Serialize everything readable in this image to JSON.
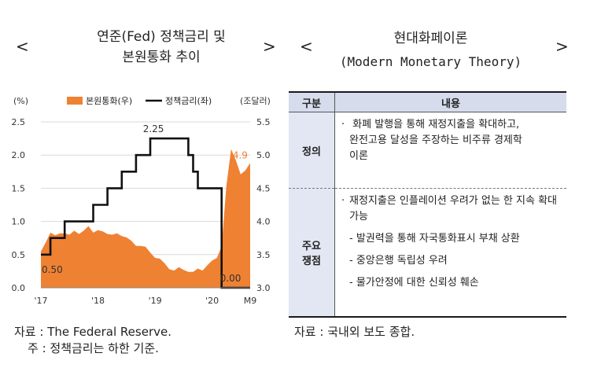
{
  "left_panel": {
    "bracket_left": "<",
    "bracket_right": ">",
    "title_line1": "연준(Fed) 정책금리 및",
    "title_line2": "본원통화 추이",
    "source": "자료 : The Federal Reserve.",
    "note": "주 : 정책금리는 하한 기준."
  },
  "right_panel": {
    "bracket_left": "<",
    "bracket_right": ">",
    "title_line1": "현대화페이론",
    "title_line2": "(Modern Monetary Theory)",
    "table": {
      "header": [
        "구분",
        "내용"
      ],
      "rows": [
        {
          "label": "정의",
          "lines": [
            "화폐 발행을 통해 재정지출을 확대하고,",
            "완전고용 달성을 주장하는 비주류 경제학",
            "이론"
          ]
        },
        {
          "label_line1": "주요",
          "label_line2": "쟁점",
          "main": "재정지출은 인플레이션 우려가 없는 한 지속 확대 가능",
          "subs": [
            "발권력을 통해 자국통화표시 부채 상환",
            "중앙은행 독립성 우려",
            "물가안정에 대한 신뢰성 훼손"
          ]
        }
      ]
    },
    "source": "자료 : 국내외 보도 종합."
  },
  "chart_data": {
    "type": "line+area",
    "left_unit": "(%)",
    "right_unit": "(조달러)",
    "legend": [
      {
        "name": "본원통화(우)",
        "color": "#ef8132"
      },
      {
        "name": "정책금리(좌)",
        "color": "#111111"
      }
    ],
    "x_ticks": [
      "'17",
      "'18",
      "'19",
      "'20",
      "M9"
    ],
    "left_axis": {
      "ylim": [
        0.0,
        2.5
      ],
      "ticks": [
        "0.0",
        "0.5",
        "1.0",
        "1.5",
        "2.0",
        "2.5"
      ]
    },
    "right_axis": {
      "ylim": [
        3.0,
        5.5
      ],
      "ticks": [
        "3.0",
        "3.5",
        "4.0",
        "4.5",
        "5.0",
        "5.5"
      ]
    },
    "annotations": [
      "2.25",
      "0.50",
      "0.00",
      "4.9"
    ],
    "series": [
      {
        "name": "정책금리(좌)",
        "axis": "left",
        "step_points": [
          [
            "2017-01",
            0.5
          ],
          [
            "2017-03",
            0.75
          ],
          [
            "2017-06",
            1.0
          ],
          [
            "2017-12",
            1.25
          ],
          [
            "2018-03",
            1.5
          ],
          [
            "2018-06",
            1.75
          ],
          [
            "2018-09",
            2.0
          ],
          [
            "2018-12",
            2.25
          ],
          [
            "2019-08",
            2.0
          ],
          [
            "2019-09",
            1.75
          ],
          [
            "2019-10",
            1.5
          ],
          [
            "2020-03",
            0.0
          ],
          [
            "2020-09",
            0.0
          ]
        ]
      },
      {
        "name": "본원통화(우)",
        "axis": "right",
        "values": [
          3.55,
          3.68,
          3.83,
          3.79,
          3.82,
          3.82,
          3.8,
          3.86,
          3.81,
          3.86,
          3.93,
          3.83,
          3.87,
          3.85,
          3.81,
          3.8,
          3.82,
          3.78,
          3.76,
          3.71,
          3.63,
          3.63,
          3.62,
          3.53,
          3.45,
          3.44,
          3.37,
          3.28,
          3.26,
          3.31,
          3.27,
          3.24,
          3.24,
          3.29,
          3.26,
          3.34,
          3.41,
          3.45,
          3.62,
          4.54,
          5.09,
          4.92,
          4.71,
          4.77,
          4.88
        ]
      }
    ]
  }
}
